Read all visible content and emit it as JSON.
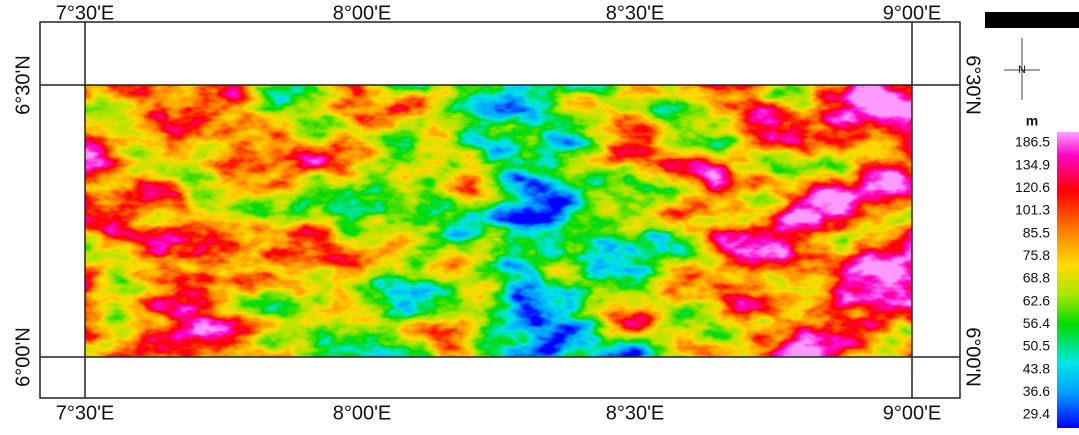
{
  "map": {
    "top_labels": [
      "7°30'E",
      "8°00'E",
      "8°30'E",
      "9°00'E"
    ],
    "bottom_labels": [
      "7°30'E",
      "8°00'E",
      "8°30'E",
      "9°00'E"
    ],
    "left_labels": [
      "6°30'N",
      "6°00'N"
    ],
    "right_labels": [
      "6°30'N",
      "6°00'N"
    ],
    "north_arrow": "N",
    "legend": {
      "unit": "m",
      "labels": [
        "186.5",
        "134.9",
        "120.6",
        "101.3",
        "85.5",
        "75.8",
        "68.8",
        "62.6",
        "56.4",
        "50.5",
        "43.8",
        "36.6",
        "29.4"
      ]
    }
  }
}
